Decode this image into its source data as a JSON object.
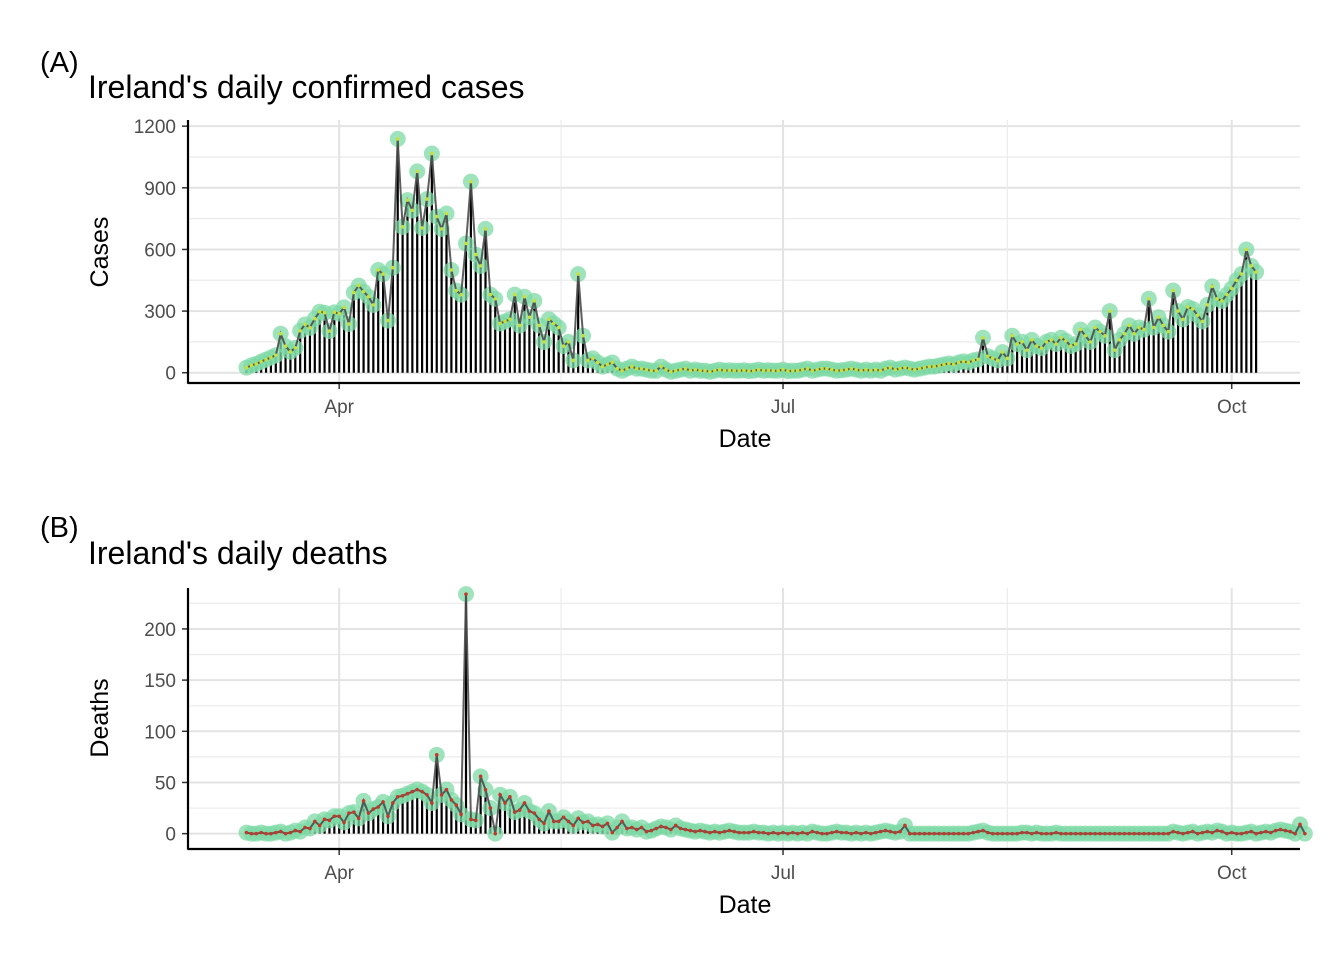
{
  "chart_data": [
    {
      "type": "bar",
      "tag": "(A)",
      "title": "Ireland's daily confirmed cases",
      "xlabel": "Date",
      "ylabel": "Cases",
      "x_ticks": [
        "Apr",
        "Jul",
        "Oct"
      ],
      "y_ticks": [
        "0",
        "300",
        "600",
        "900",
        "1200"
      ],
      "ylim": [
        -50,
        1230
      ],
      "xlim": [
        "2020-03-01",
        "2020-10-15"
      ],
      "grid": true,
      "legend": "none",
      "colors": {
        "bar": "#000000",
        "line": "#4d4d4d",
        "halo": "#7ed9a6",
        "point": "#c8e03c"
      },
      "start_date": "2020-03-13",
      "values": [
        25,
        36,
        43,
        54,
        64,
        74,
        85,
        190,
        129,
        102,
        121,
        204,
        235,
        219,
        263,
        297,
        292,
        203,
        294,
        288,
        318,
        237,
        390,
        424,
        395,
        370,
        330,
        500,
        480,
        254,
        511,
        1138,
        710,
        840,
        790,
        980,
        705,
        845,
        1067,
        760,
        700,
        775,
        500,
        400,
        380,
        629,
        930,
        575,
        520,
        700,
        380,
        360,
        240,
        250,
        260,
        380,
        230,
        370,
        270,
        350,
        230,
        150,
        260,
        240,
        220,
        130,
        150,
        60,
        480,
        180,
        60,
        70,
        50,
        30,
        40,
        50,
        20,
        10,
        20,
        30,
        20,
        20,
        15,
        10,
        10,
        30,
        15,
        5,
        10,
        15,
        20,
        10,
        15,
        10,
        10,
        5,
        10,
        15,
        10,
        12,
        10,
        10,
        12,
        8,
        10,
        15,
        10,
        12,
        10,
        10,
        15,
        8,
        10,
        10,
        15,
        20,
        10,
        15,
        20,
        20,
        15,
        10,
        12,
        15,
        20,
        15,
        10,
        15,
        10,
        15,
        10,
        20,
        25,
        15,
        20,
        25,
        20,
        15,
        20,
        25,
        30,
        30,
        35,
        40,
        45,
        40,
        50,
        55,
        50,
        60,
        65,
        170,
        80,
        70,
        60,
        100,
        70,
        180,
        140,
        150,
        110,
        160,
        130,
        120,
        150,
        160,
        140,
        170,
        155,
        130,
        140,
        210,
        180,
        150,
        220,
        200,
        180,
        300,
        110,
        160,
        190,
        230,
        190,
        220,
        210,
        360,
        220,
        270,
        230,
        200,
        400,
        300,
        260,
        320,
        310,
        280,
        250,
        330,
        420,
        360,
        350,
        380,
        410,
        450,
        480,
        600,
        520,
        490
      ]
    },
    {
      "type": "bar",
      "tag": "(B)",
      "title": "Ireland's daily deaths",
      "xlabel": "Date",
      "ylabel": "Deaths",
      "x_ticks": [
        "Apr",
        "Jul",
        "Oct"
      ],
      "y_ticks": [
        "0",
        "50",
        "100",
        "150",
        "200"
      ],
      "ylim": [
        -15,
        240
      ],
      "xlim": [
        "2020-03-01",
        "2020-10-15"
      ],
      "grid": true,
      "legend": "none",
      "colors": {
        "bar": "#000000",
        "line": "#4d4d4d",
        "halo": "#7ed9a6",
        "point": "#c0392b"
      },
      "start_date": "2020-03-13",
      "values": [
        1,
        0,
        0,
        1,
        0,
        0,
        1,
        2,
        0,
        1,
        3,
        2,
        6,
        5,
        12,
        8,
        14,
        13,
        17,
        17,
        11,
        20,
        21,
        15,
        32,
        20,
        24,
        26,
        31,
        17,
        30,
        36,
        37,
        39,
        41,
        43,
        41,
        38,
        30,
        77,
        38,
        43,
        33,
        28,
        19,
        234,
        14,
        13,
        56,
        43,
        25,
        0,
        38,
        30,
        36,
        21,
        23,
        30,
        22,
        20,
        14,
        10,
        22,
        12,
        12,
        16,
        12,
        8,
        15,
        11,
        12,
        8,
        9,
        7,
        10,
        1,
        6,
        12,
        5,
        6,
        4,
        6,
        2,
        3,
        5,
        7,
        6,
        4,
        8,
        5,
        4,
        3,
        2,
        3,
        2,
        1,
        2,
        1,
        2,
        3,
        2,
        1,
        1,
        1,
        2,
        1,
        1,
        0,
        1,
        0,
        1,
        0,
        1,
        0,
        1,
        0,
        2,
        1,
        0,
        0,
        1,
        2,
        1,
        1,
        0,
        1,
        0,
        1,
        0,
        1,
        2,
        3,
        2,
        1,
        2,
        8,
        0,
        0,
        0,
        0,
        0,
        0,
        0,
        0,
        0,
        0,
        0,
        0,
        0,
        1,
        2,
        3,
        1,
        0,
        0,
        0,
        0,
        0,
        0,
        1,
        1,
        0,
        1,
        0,
        0,
        0,
        1,
        0,
        0,
        0,
        0,
        0,
        0,
        0,
        0,
        0,
        0,
        0,
        0,
        0,
        0,
        0,
        0,
        0,
        0,
        0,
        0,
        0,
        0,
        0,
        2,
        1,
        0,
        1,
        2,
        0,
        1,
        2,
        1,
        3,
        2,
        0,
        1,
        0,
        0,
        1,
        2,
        0,
        1,
        2,
        1,
        3,
        4,
        3,
        2,
        0,
        9,
        0
      ]
    }
  ]
}
